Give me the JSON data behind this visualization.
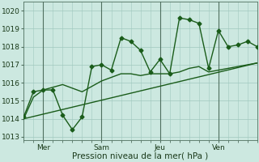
{
  "xlabel": "Pression niveau de la mer( hPa )",
  "bg_color": "#cce8e0",
  "grid_color": "#a0c8be",
  "line_color": "#1a5c1a",
  "vline_color": "#507060",
  "ylim": [
    1012.8,
    1020.5
  ],
  "xlim": [
    0,
    96
  ],
  "xtick_positions": [
    8,
    32,
    56,
    80
  ],
  "xtick_labels": [
    "Mer",
    "Sam",
    "Jeu",
    "Ven"
  ],
  "ytick_positions": [
    1013,
    1014,
    1015,
    1016,
    1017,
    1018,
    1019,
    1020
  ],
  "vline_positions": [
    8,
    32,
    56,
    80
  ],
  "line1_x": [
    0,
    4,
    8,
    12,
    16,
    20,
    24,
    28,
    32,
    36,
    40,
    44,
    48,
    52,
    56,
    60,
    64,
    68,
    72,
    76,
    80,
    84,
    88,
    92,
    96
  ],
  "line1_y": [
    1014.1,
    1015.5,
    1015.6,
    1015.6,
    1014.2,
    1013.4,
    1014.1,
    1016.9,
    1017.0,
    1016.7,
    1018.5,
    1018.3,
    1017.8,
    1016.6,
    1017.3,
    1016.5,
    1019.6,
    1019.5,
    1019.3,
    1016.8,
    1018.9,
    1018.0,
    1018.1,
    1018.3,
    1018.0
  ],
  "line2_x": [
    0,
    4,
    8,
    16,
    24,
    28,
    32,
    36,
    40,
    44,
    48,
    52,
    56,
    60,
    64,
    68,
    72,
    76,
    80,
    84,
    88,
    92,
    96
  ],
  "line2_y": [
    1014.0,
    1015.2,
    1015.6,
    1015.9,
    1015.5,
    1015.8,
    1016.1,
    1016.3,
    1016.5,
    1016.5,
    1016.4,
    1016.5,
    1016.5,
    1016.5,
    1016.6,
    1016.8,
    1016.9,
    1016.6,
    1016.7,
    1016.8,
    1016.9,
    1017.0,
    1017.1
  ],
  "line3_x": [
    0,
    96
  ],
  "line3_y": [
    1014.0,
    1017.1
  ],
  "marker_size": 2.5,
  "linewidth": 1.0,
  "xlabel_fontsize": 7.5,
  "tick_fontsize": 6.5
}
